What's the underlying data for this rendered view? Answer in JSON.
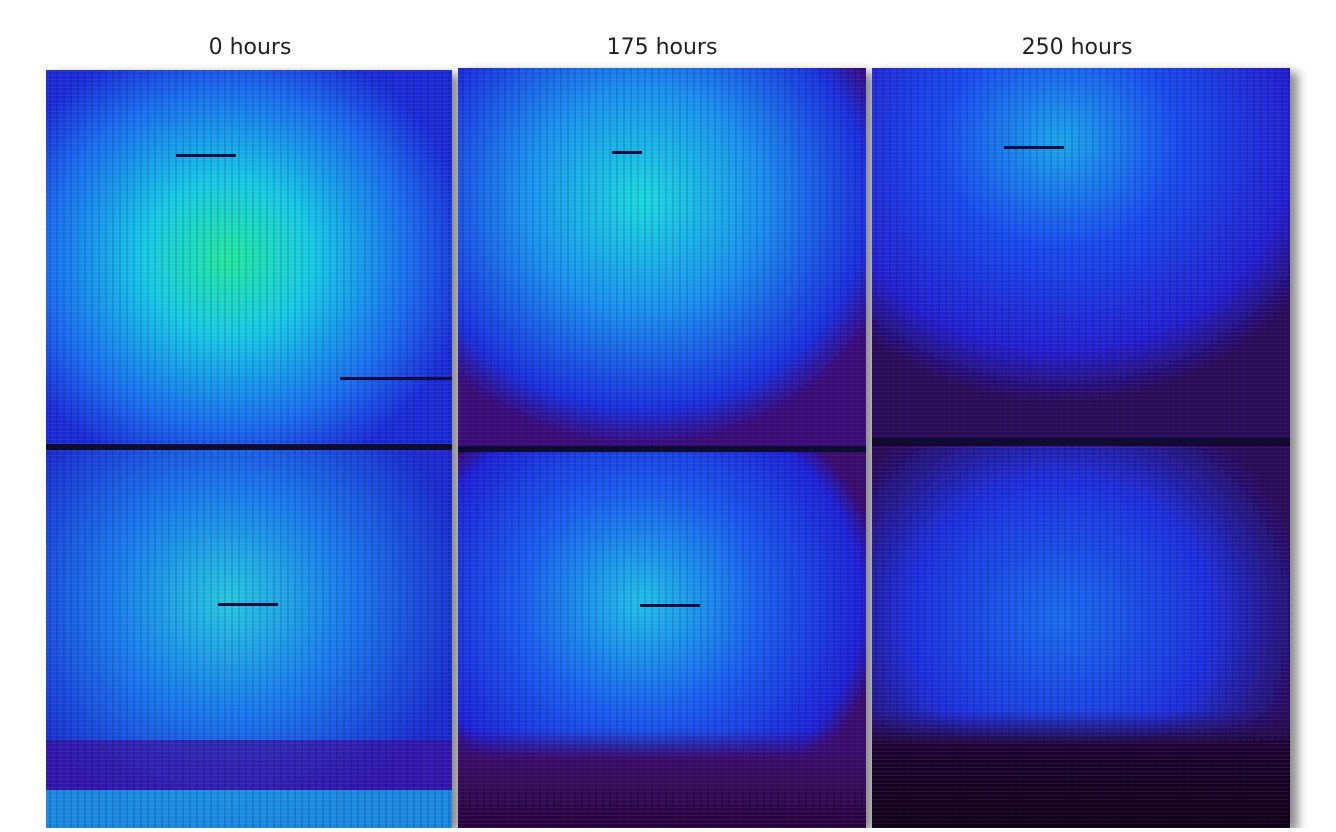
{
  "panels": [
    {
      "label": "0 hours"
    },
    {
      "label": "175 hours"
    },
    {
      "label": "250 hours"
    }
  ]
}
